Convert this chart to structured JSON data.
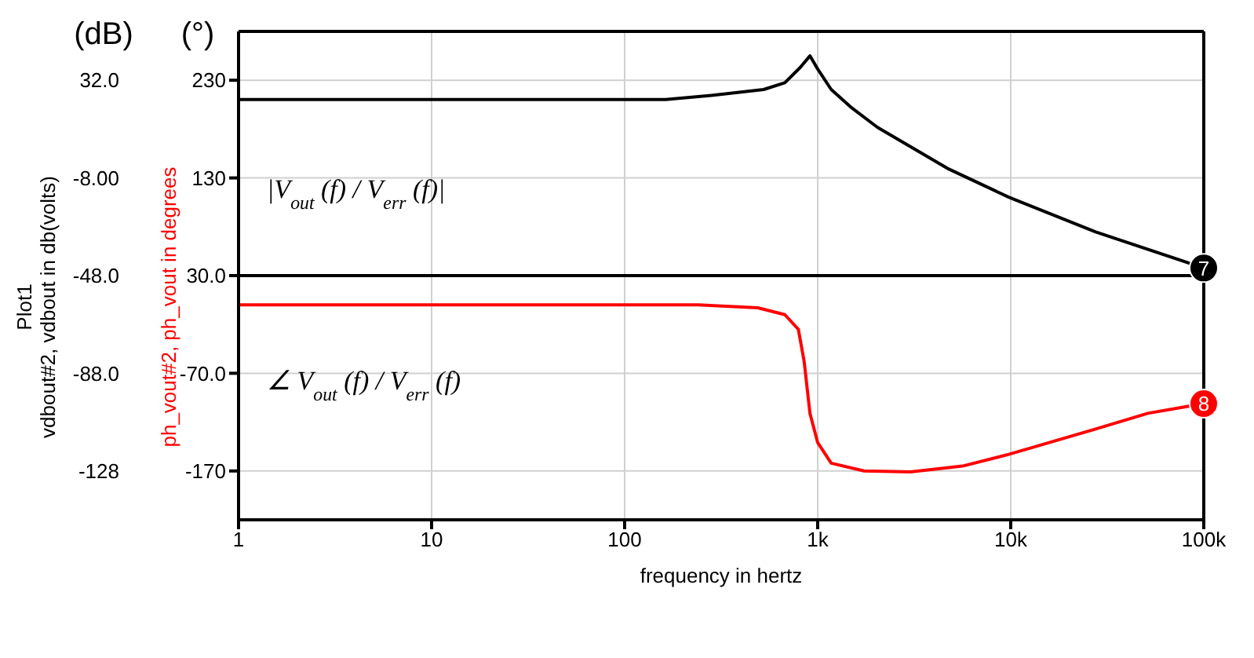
{
  "chart_data": {
    "type": "line",
    "xlabel": "frequency in hertz",
    "ylabel": "Plot1\nvdbout#2, vdbout in db(volts)",
    "y2label": "ph_vout#2, ph_vout in degrees",
    "series": [
      {
        "color": "#000000",
        "x": [
          1,
          10,
          100,
          163,
          282,
          525,
          676,
          813,
          912,
          1000,
          1175,
          1479,
          2042,
          4786,
          9772,
          27542,
          100000
        ],
        "values": [
          24.1,
          24.1,
          24.1,
          24.1,
          25.8,
          28.2,
          31.0,
          37.3,
          42.0,
          36.6,
          28.2,
          21.1,
          12.7,
          -4.4,
          -15.9,
          -30.1,
          -44.9
        ]
      },
      {
        "color": "#ff0000",
        "axis": "y2",
        "x": [
          1,
          10,
          100,
          240,
          490,
          676,
          794,
          851,
          912,
          1000,
          1175,
          1738,
          3020,
          5623,
          9772,
          27542,
          51286,
          100000
        ],
        "values": [
          0,
          0,
          0,
          0,
          -3,
          -10,
          -25,
          -58,
          -111,
          -141,
          -162,
          -170,
          -171,
          -165,
          -153,
          -127,
          -111,
          -101
        ]
      }
    ],
    "xlim": [
      1,
      100000
    ],
    "xticks": [
      1,
      10,
      100,
      {
        "value": 1000,
        "label": "1k"
      },
      {
        "value": 10000,
        "label": "10k"
      },
      {
        "value": 100000,
        "label": "100k"
      }
    ],
    "ylim": [
      -148,
      52
    ],
    "yticks": [
      {
        "value": -128,
        "label": "-128"
      },
      {
        "value": -88,
        "label": "-88.0"
      },
      {
        "value": -48,
        "label": "-48.0"
      },
      {
        "value": -8,
        "label": "-8.00"
      },
      {
        "value": 32,
        "label": "32.0"
      }
    ],
    "y2lim": [
      -220,
      280
    ],
    "y2ticks": [
      -170,
      {
        "value": -70,
        "label": "-70.0"
      },
      {
        "value": 30,
        "label": "30.0"
      },
      130,
      230
    ],
    "log": "x",
    "grid": true,
    "legend": false,
    "marker": "none",
    "line_style": "solid",
    "ref_lines": [
      {
        "axis": "y",
        "value": -48,
        "color": "#000000"
      }
    ],
    "annotations": [
      "(dB)",
      "(°)",
      "|V$_{out}$(f) / V$_{err}$(f)|",
      "∠ V$_{out}$(f) / V$_{err}$(f)",
      {
        "text": "7",
        "x": 100000,
        "y": -44.9
      },
      {
        "text": "8",
        "x": 100000,
        "y": -101
      }
    ]
  }
}
